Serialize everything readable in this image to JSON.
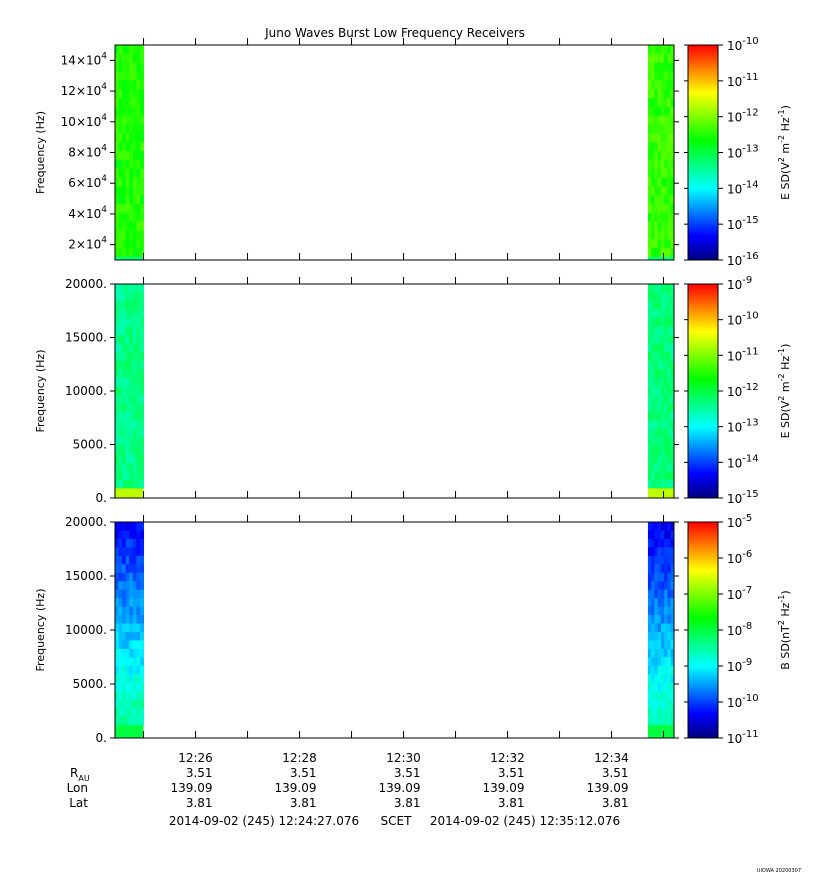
{
  "title": "Juno Waves Burst Low Frequency Receivers",
  "watermark": "UIOWA 20200307",
  "colors": {
    "frame": "#000000",
    "background": "#ffffff",
    "colormap": [
      "#00007f",
      "#0000ff",
      "#0080ff",
      "#00ffff",
      "#00ff80",
      "#00ff00",
      "#80ff00",
      "#ffff00",
      "#ff8000",
      "#ff0000"
    ]
  },
  "chart_data": [
    {
      "type": "heatmap",
      "ylabel": "Frequency (Hz)",
      "y_ticks": [
        {
          "value": 20000,
          "mantissa": "2×10",
          "exp": "4"
        },
        {
          "value": 40000,
          "mantissa": "4×10",
          "exp": "4"
        },
        {
          "value": 60000,
          "mantissa": "6×10",
          "exp": "4"
        },
        {
          "value": 80000,
          "mantissa": "8×10",
          "exp": "4"
        },
        {
          "value": 100000,
          "mantissa": "10×10",
          "exp": "4"
        },
        {
          "value": 120000,
          "mantissa": "12×10",
          "exp": "4"
        },
        {
          "value": 140000,
          "mantissa": "14×10",
          "exp": "4"
        }
      ],
      "ylim": [
        10000,
        150000
      ],
      "data_blocks": [
        {
          "start": "12:24:27",
          "end": "12:25:00",
          "level": 0.58,
          "low_freq_level": 0.45,
          "low_band_top": 12000
        },
        {
          "start": "12:34:42",
          "end": "12:35:12",
          "level": 0.6,
          "low_freq_level": 0.45,
          "low_band_top": 12000
        }
      ],
      "colorbar": {
        "label_main": "E SD(V",
        "label_sup1": "2",
        "label_mid": " m",
        "label_sup2": "-2",
        "label_mid2": " Hz",
        "label_sup3": "-1",
        "label_end": ")",
        "exponents": [
          "-10",
          "-11",
          "-12",
          "-13",
          "-14",
          "-15",
          "-16"
        ],
        "log_range": [
          -16,
          -10
        ]
      }
    },
    {
      "type": "heatmap",
      "ylabel": "Frequency (Hz)",
      "y_ticks": [
        {
          "value": 0,
          "label": "0."
        },
        {
          "value": 5000,
          "label": "5000."
        },
        {
          "value": 10000,
          "label": "10000."
        },
        {
          "value": 15000,
          "label": "15000."
        },
        {
          "value": 20000,
          "label": "20000."
        }
      ],
      "ylim": [
        0,
        20000
      ],
      "data_blocks": [
        {
          "start": "12:24:27",
          "end": "12:25:00",
          "level": 0.44,
          "low_freq_level": 0.72,
          "low_band_top": 900
        },
        {
          "start": "12:34:42",
          "end": "12:35:12",
          "level": 0.45,
          "low_freq_level": 0.72,
          "low_band_top": 900
        }
      ],
      "colorbar": {
        "label_main": "E SD(V",
        "label_sup1": "2",
        "label_mid": " m",
        "label_sup2": "-2",
        "label_mid2": " Hz",
        "label_sup3": "-1",
        "label_end": ")",
        "exponents": [
          "-9",
          "-10",
          "-11",
          "-12",
          "-13",
          "-14",
          "-15"
        ],
        "log_range": [
          -15,
          -9
        ]
      }
    },
    {
      "type": "heatmap",
      "ylabel": "Frequency (Hz)",
      "y_ticks": [
        {
          "value": 0,
          "label": "0."
        },
        {
          "value": 5000,
          "label": "5000."
        },
        {
          "value": 10000,
          "label": "10000."
        },
        {
          "value": 15000,
          "label": "15000."
        },
        {
          "value": 20000,
          "label": "20000."
        }
      ],
      "ylim": [
        0,
        20000
      ],
      "data_blocks": [
        {
          "start": "12:24:27",
          "end": "12:25:00",
          "level": 0.12,
          "gradient_to": 0.42,
          "low_freq_level": 0.5,
          "low_band_top": 1200
        },
        {
          "start": "12:34:42",
          "end": "12:35:12",
          "level": 0.1,
          "gradient_to": 0.4,
          "low_freq_level": 0.5,
          "low_band_top": 1200
        }
      ],
      "colorbar": {
        "label_main": "B SD(nT",
        "label_sup1": "2",
        "label_mid": " Hz",
        "label_sup2": "-1",
        "label_mid2": "",
        "label_sup3": "",
        "label_end": ")",
        "exponents": [
          "-5",
          "-6",
          "-7",
          "-8",
          "-9",
          "-10",
          "-11"
        ],
        "log_range": [
          -11,
          -5
        ]
      }
    }
  ],
  "x_axis": {
    "start": "12:24:27.076",
    "end": "12:35:12.076",
    "tick_labels": [
      "12:26",
      "12:28",
      "12:30",
      "12:32",
      "12:34"
    ],
    "tick_times": [
      "12:26:00",
      "12:28:00",
      "12:30:00",
      "12:32:00",
      "12:34:00"
    ],
    "minor_tick_times": [
      "12:25:00",
      "12:27:00",
      "12:29:00",
      "12:31:00",
      "12:33:00",
      "12:35:00"
    ]
  },
  "ephemeris": {
    "rows": [
      {
        "label": "R",
        "sub": "AU",
        "values": [
          "3.51",
          "3.51",
          "3.51",
          "3.51",
          "3.51"
        ]
      },
      {
        "label": "Lon",
        "sub": "",
        "values": [
          "139.09",
          "139.09",
          "139.09",
          "139.09",
          "139.09"
        ]
      },
      {
        "label": "Lat",
        "sub": "",
        "values": [
          "3.81",
          "3.81",
          "3.81",
          "3.81",
          "3.81"
        ]
      }
    ]
  },
  "footer": {
    "start_text": "2014-09-02 (245) 12:24:27.076",
    "scet": "SCET",
    "end_text": "2014-09-02 (245) 12:35:12.076"
  }
}
